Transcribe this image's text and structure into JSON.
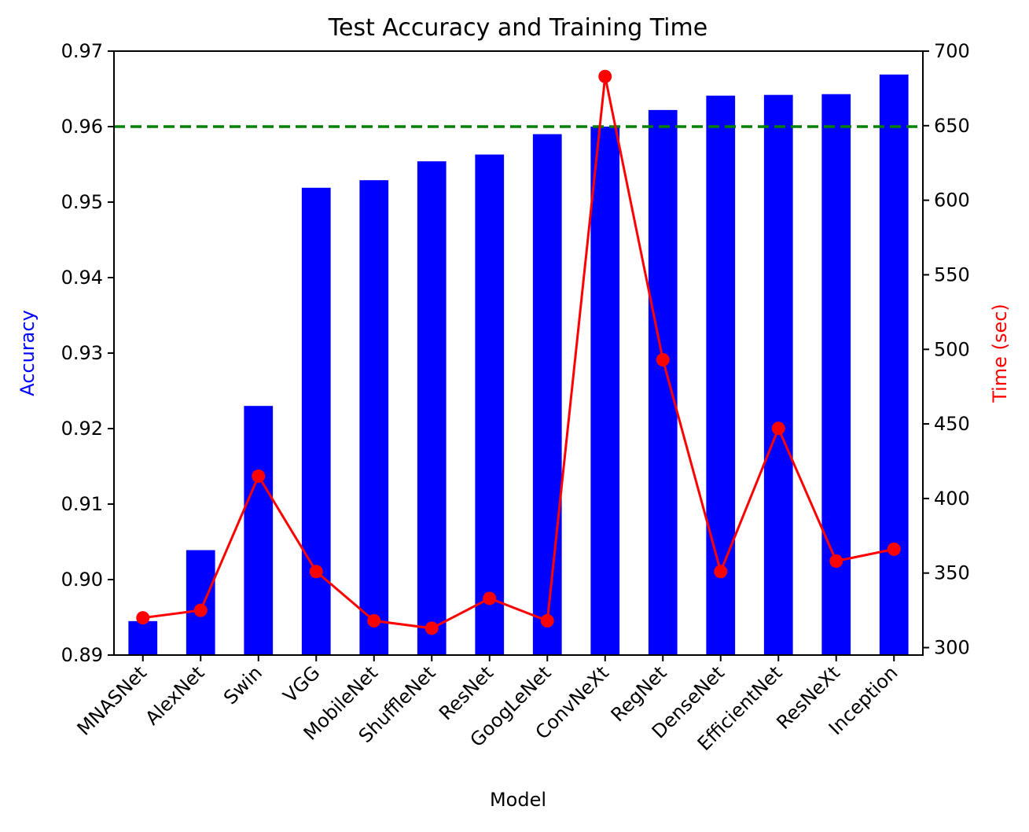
{
  "chart_data": {
    "type": "bar",
    "title": "Test Accuracy and Training Time",
    "xlabel": "Model",
    "ylabel": "Accuracy",
    "y2label": "Time (sec)",
    "categories": [
      "MNASNet",
      "AlexNet",
      "Swin",
      "VGG",
      "MobileNet",
      "ShuffleNet",
      "ResNet",
      "GoogLeNet",
      "ConvNeXt",
      "RegNet",
      "DenseNet",
      "EfficientNet",
      "ResNeXt",
      "Inception"
    ],
    "ylim": [
      0.89,
      0.97
    ],
    "y2lim": [
      295,
      700
    ],
    "yticks": [
      "0.89",
      "0.90",
      "0.91",
      "0.92",
      "0.93",
      "0.94",
      "0.95",
      "0.96",
      "0.97"
    ],
    "y2ticks": [
      "300",
      "350",
      "400",
      "450",
      "500",
      "550",
      "600",
      "650",
      "700"
    ],
    "grid": false,
    "reference_line": {
      "axis": "left",
      "value": 0.96,
      "style": "dashed",
      "color": "#008000"
    },
    "series": [
      {
        "type": "bar",
        "axis": "left",
        "color": "#0000ff",
        "values": [
          0.8945,
          0.9039,
          0.923,
          0.9519,
          0.9529,
          0.9554,
          0.9563,
          0.959,
          0.96,
          0.9622,
          0.9641,
          0.9642,
          0.9643,
          0.9669
        ]
      },
      {
        "type": "line",
        "axis": "right",
        "color": "#ff0000",
        "marker": "circle",
        "values": [
          320,
          325,
          415,
          351,
          318,
          313,
          333,
          318,
          683,
          493,
          351,
          447,
          358,
          366
        ]
      }
    ]
  }
}
